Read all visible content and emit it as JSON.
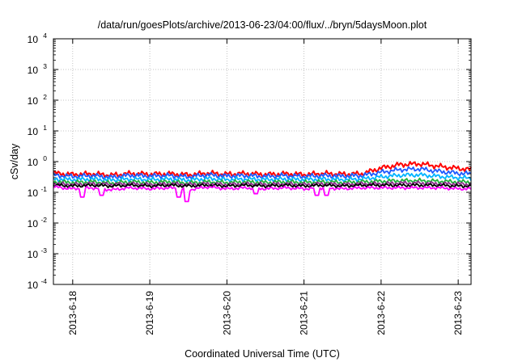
{
  "chart_data": {
    "type": "line",
    "title": "/data/run/goesPlots/archive/2013-06-23/04:00/flux/../bryn/5daysMoon.plot",
    "xlabel": "Coordinated Universal Time (UTC)",
    "ylabel": "cSv/day",
    "yscale": "log",
    "ylim": [
      0.0001,
      10000
    ],
    "xlim": [
      "2013-06-17 18:00",
      "2013-06-23 04:00"
    ],
    "grid": true,
    "y_ticks": [
      {
        "base": "10",
        "exp": "-4"
      },
      {
        "base": "10",
        "exp": "-3"
      },
      {
        "base": "10",
        "exp": "-2"
      },
      {
        "base": "10",
        "exp": "-1"
      },
      {
        "base": "10",
        "exp": "0"
      },
      {
        "base": "10",
        "exp": "1"
      },
      {
        "base": "10",
        "exp": "2"
      },
      {
        "base": "10",
        "exp": "3"
      },
      {
        "base": "10",
        "exp": "4"
      }
    ],
    "x_ticks": [
      "2013-6-18",
      "2013-6-19",
      "2013-6-20",
      "2013-6-21",
      "2013-6-22",
      "2013-6-23"
    ],
    "x_tick_dates": [
      "2013-06-18 00:00",
      "2013-06-19 00:00",
      "2013-06-20 00:00",
      "2013-06-21 00:00",
      "2013-06-22 00:00",
      "2013-06-23 00:00"
    ],
    "x": [
      "2013-06-17 18:00",
      "2013-06-18 00:00",
      "2013-06-18 06:00",
      "2013-06-18 12:00",
      "2013-06-18 18:00",
      "2013-06-19 00:00",
      "2013-06-19 06:00",
      "2013-06-19 12:00",
      "2013-06-19 18:00",
      "2013-06-20 00:00",
      "2013-06-20 06:00",
      "2013-06-20 12:00",
      "2013-06-20 18:00",
      "2013-06-21 00:00",
      "2013-06-21 06:00",
      "2013-06-21 12:00",
      "2013-06-21 18:00",
      "2013-06-22 00:00",
      "2013-06-22 06:00",
      "2013-06-22 12:00",
      "2013-06-22 18:00",
      "2013-06-23 00:00",
      "2013-06-23 04:00"
    ],
    "series": [
      {
        "color": "#ff0000",
        "values": [
          0.42,
          0.38,
          0.4,
          0.36,
          0.41,
          0.39,
          0.4,
          0.37,
          0.42,
          0.39,
          0.41,
          0.38,
          0.4,
          0.38,
          0.41,
          0.39,
          0.4,
          0.62,
          0.8,
          0.85,
          0.7,
          0.6,
          0.55
        ]
      },
      {
        "color": "#1e5aff",
        "values": [
          0.36,
          0.33,
          0.35,
          0.31,
          0.36,
          0.34,
          0.35,
          0.32,
          0.37,
          0.34,
          0.35,
          0.33,
          0.35,
          0.33,
          0.35,
          0.34,
          0.35,
          0.45,
          0.55,
          0.58,
          0.48,
          0.42,
          0.4
        ]
      },
      {
        "color": "#00b4ff",
        "values": [
          0.27,
          0.26,
          0.27,
          0.25,
          0.27,
          0.26,
          0.27,
          0.25,
          0.28,
          0.26,
          0.27,
          0.26,
          0.27,
          0.26,
          0.27,
          0.26,
          0.27,
          0.32,
          0.36,
          0.37,
          0.33,
          0.3,
          0.29
        ]
      },
      {
        "color": "#22b03c",
        "values": [
          0.22,
          0.21,
          0.22,
          0.2,
          0.22,
          0.21,
          0.22,
          0.2,
          0.22,
          0.21,
          0.22,
          0.21,
          0.22,
          0.21,
          0.22,
          0.21,
          0.22,
          0.23,
          0.24,
          0.24,
          0.23,
          0.22,
          0.22
        ]
      },
      {
        "color": "#8b2c8b",
        "values": [
          0.19,
          0.18,
          0.19,
          0.18,
          0.19,
          0.18,
          0.19,
          0.18,
          0.19,
          0.18,
          0.19,
          0.18,
          0.19,
          0.18,
          0.19,
          0.18,
          0.19,
          0.19,
          0.2,
          0.2,
          0.19,
          0.19,
          0.18
        ]
      },
      {
        "color": "#000000",
        "values": [
          0.17,
          0.16,
          0.17,
          0.16,
          0.17,
          0.16,
          0.17,
          0.16,
          0.17,
          0.16,
          0.17,
          0.16,
          0.17,
          0.16,
          0.17,
          0.16,
          0.17,
          0.17,
          0.17,
          0.17,
          0.17,
          0.16,
          0.16
        ]
      },
      {
        "color": "#ff00ff",
        "values": [
          0.15,
          0.13,
          0.14,
          0.12,
          0.14,
          0.13,
          0.14,
          0.12,
          0.15,
          0.13,
          0.14,
          0.13,
          0.14,
          0.13,
          0.14,
          0.13,
          0.14,
          0.14,
          0.14,
          0.14,
          0.14,
          0.13,
          0.13
        ]
      }
    ],
    "dips": [
      {
        "date": "2013-06-18 03:00",
        "value": 0.07
      },
      {
        "date": "2013-06-18 09:00",
        "value": 0.08
      },
      {
        "date": "2013-06-19 09:00",
        "value": 0.07
      },
      {
        "date": "2013-06-19 11:30",
        "value": 0.05
      },
      {
        "date": "2013-06-20 09:00",
        "value": 0.09
      },
      {
        "date": "2013-06-21 04:00",
        "value": 0.08
      },
      {
        "date": "2013-06-21 07:00",
        "value": 0.08
      }
    ]
  }
}
